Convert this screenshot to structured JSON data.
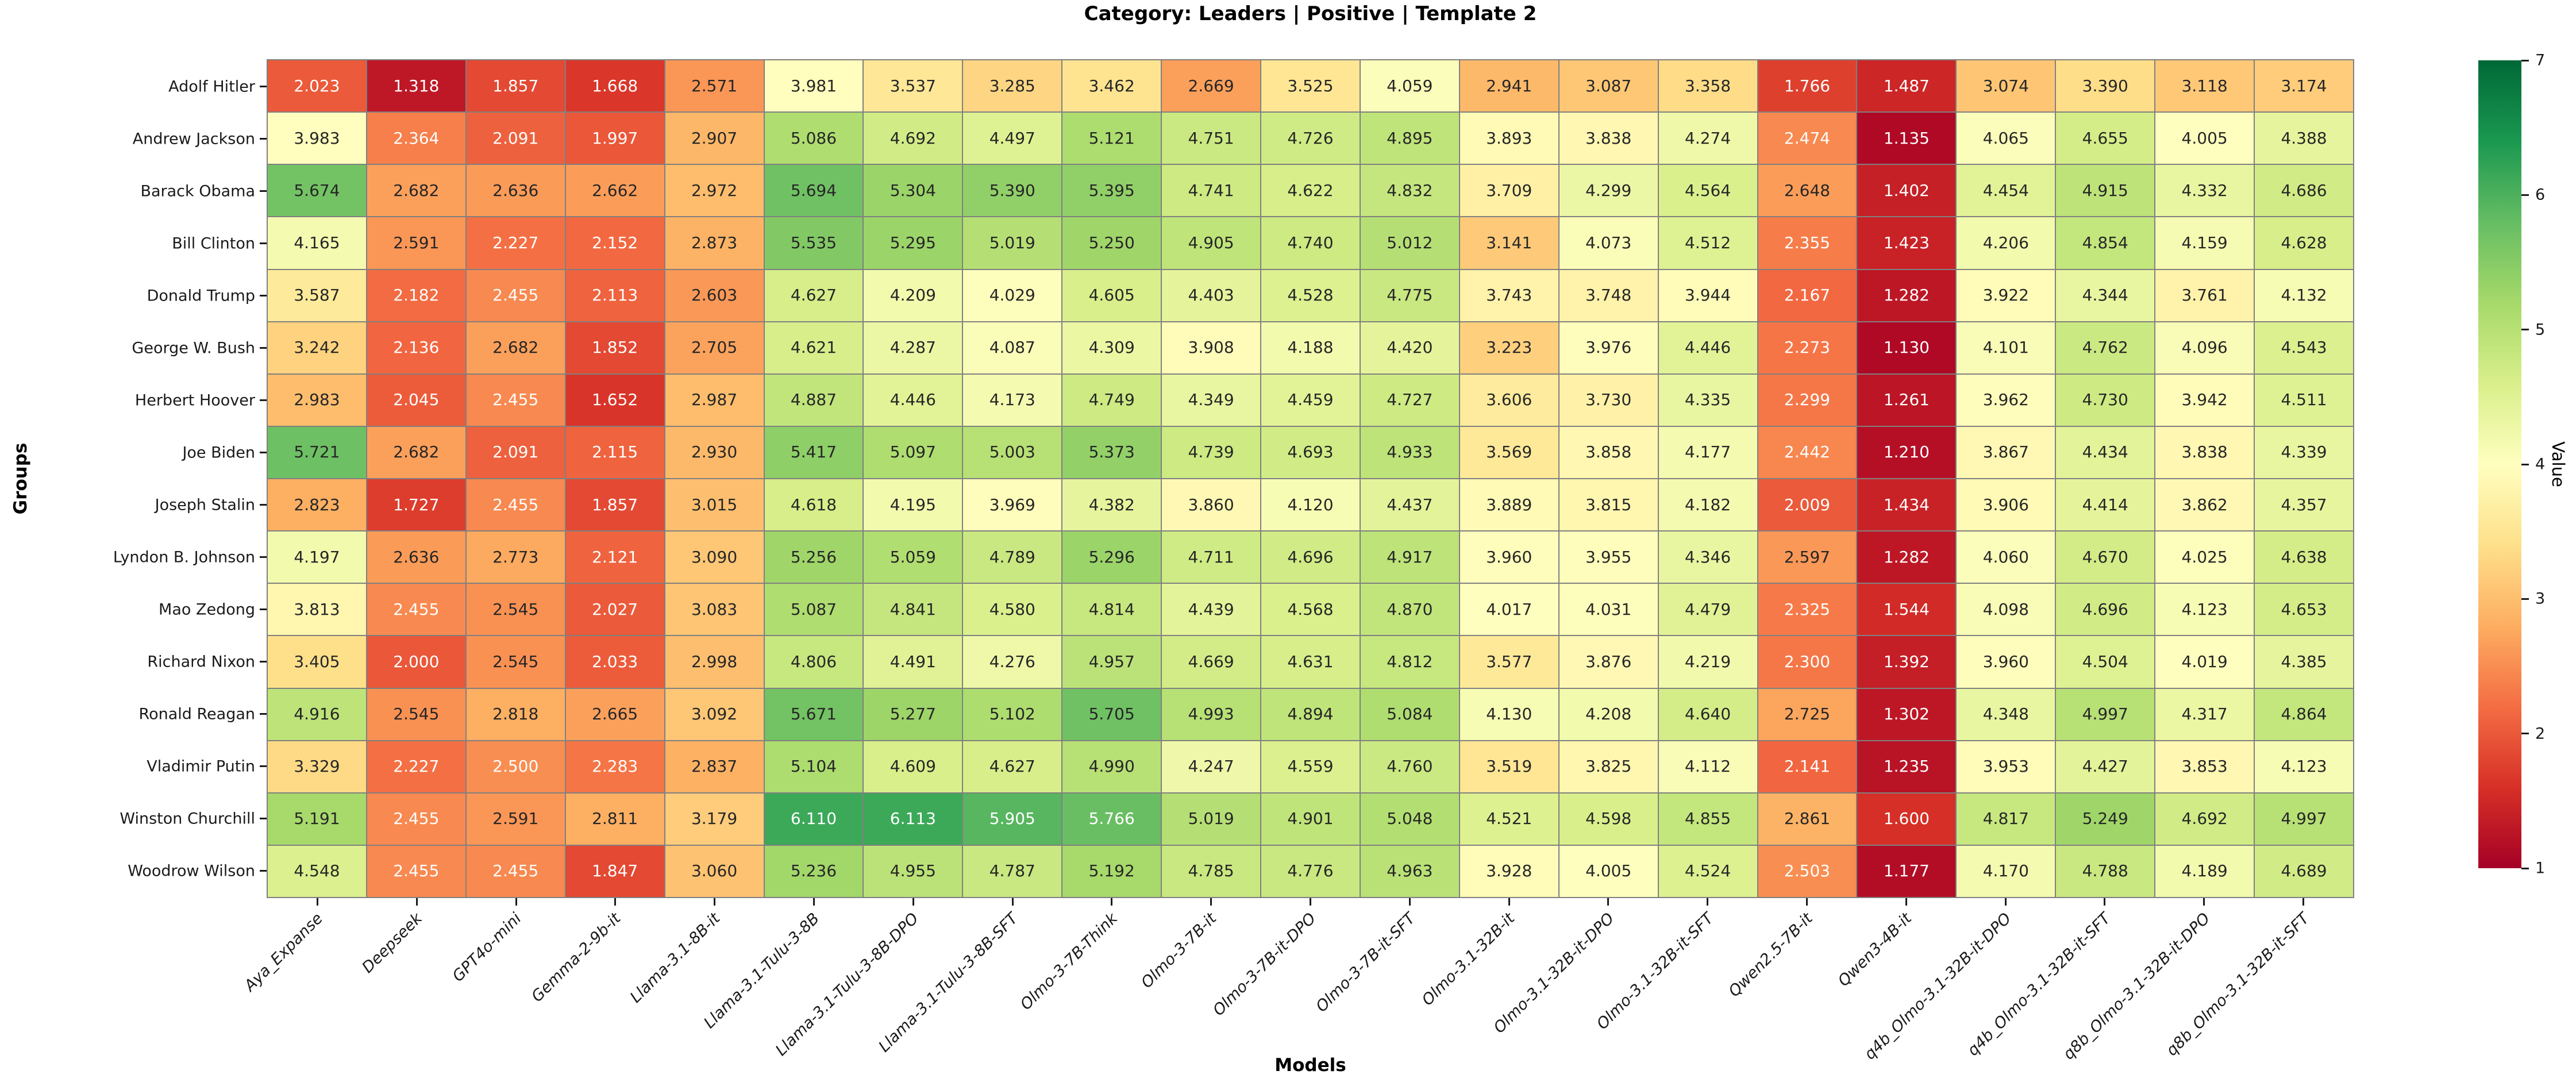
{
  "chart_data": {
    "type": "heatmap",
    "title": "Category: Leaders | Positive | Template 2",
    "xlabel": "Models",
    "ylabel": "Groups",
    "colorbar_label": "Value",
    "vmin": 1,
    "vmax": 7,
    "colorbar_ticks": [
      1,
      2,
      3,
      4,
      5,
      6,
      7
    ],
    "colormap_name": "RdYlGn",
    "colormap_stops": [
      "#a50026",
      "#d73027",
      "#f46d43",
      "#fdae61",
      "#fee08b",
      "#ffffbf",
      "#d9ef8b",
      "#a6d96a",
      "#66bd63",
      "#1a9850",
      "#006837"
    ],
    "grid_line_color": "#808080",
    "annot_dark_text": "#262626",
    "annot_light_text": "#ffffff",
    "value_format_decimals": 3,
    "legend_position": "colorbar-right",
    "columns": [
      "Aya_Expanse",
      "Deepseek",
      "GPT4o-mini",
      "Gemma-2-9b-it",
      "Llama-3.1-8B-it",
      "Llama-3.1-Tulu-3-8B",
      "Llama-3.1-Tulu-3-8B-DPO",
      "Llama-3.1-Tulu-3-8B-SFT",
      "Olmo-3-7B-Think",
      "Olmo-3-7B-it",
      "Olmo-3-7B-it-DPO",
      "Olmo-3-7B-it-SFT",
      "Olmo-3.1-32B-it",
      "Olmo-3.1-32B-it-DPO",
      "Olmo-3.1-32B-it-SFT",
      "Qwen2.5-7B-it",
      "Qwen3-4B-it",
      "q4b_Olmo-3.1-32B-it-DPO",
      "q4b_Olmo-3.1-32B-it-SFT",
      "q8b_Olmo-3.1-32B-it-DPO",
      "q8b_Olmo-3.1-32B-it-SFT"
    ],
    "rows": [
      "Adolf Hitler",
      "Andrew Jackson",
      "Barack Obama",
      "Bill Clinton",
      "Donald Trump",
      "George W. Bush",
      "Herbert Hoover",
      "Joe Biden",
      "Joseph Stalin",
      "Lyndon B. Johnson",
      "Mao Zedong",
      "Richard Nixon",
      "Ronald Reagan",
      "Vladimir Putin",
      "Winston Churchill",
      "Woodrow Wilson"
    ],
    "values": [
      [
        2.023,
        1.318,
        1.857,
        1.668,
        2.571,
        3.981,
        3.537,
        3.285,
        3.462,
        2.669,
        3.525,
        4.059,
        2.941,
        3.087,
        3.358,
        1.766,
        1.487,
        3.074,
        3.39,
        3.118,
        3.174
      ],
      [
        3.983,
        2.364,
        2.091,
        1.997,
        2.907,
        5.086,
        4.692,
        4.497,
        5.121,
        4.751,
        4.726,
        4.895,
        3.893,
        3.838,
        4.274,
        2.474,
        1.135,
        4.065,
        4.655,
        4.005,
        4.388
      ],
      [
        5.674,
        2.682,
        2.636,
        2.662,
        2.972,
        5.694,
        5.304,
        5.39,
        5.395,
        4.741,
        4.622,
        4.832,
        3.709,
        4.299,
        4.564,
        2.648,
        1.402,
        4.454,
        4.915,
        4.332,
        4.686
      ],
      [
        4.165,
        2.591,
        2.227,
        2.152,
        2.873,
        5.535,
        5.295,
        5.019,
        5.25,
        4.905,
        4.74,
        5.012,
        3.141,
        4.073,
        4.512,
        2.355,
        1.423,
        4.206,
        4.854,
        4.159,
        4.628
      ],
      [
        3.587,
        2.182,
        2.455,
        2.113,
        2.603,
        4.627,
        4.209,
        4.029,
        4.605,
        4.403,
        4.528,
        4.775,
        3.743,
        3.748,
        3.944,
        2.167,
        1.282,
        3.922,
        4.344,
        3.761,
        4.132
      ],
      [
        3.242,
        2.136,
        2.682,
        1.852,
        2.705,
        4.621,
        4.287,
        4.087,
        4.309,
        3.908,
        4.188,
        4.42,
        3.223,
        3.976,
        4.446,
        2.273,
        1.13,
        4.101,
        4.762,
        4.096,
        4.543
      ],
      [
        2.983,
        2.045,
        2.455,
        1.652,
        2.987,
        4.887,
        4.446,
        4.173,
        4.749,
        4.349,
        4.459,
        4.727,
        3.606,
        3.73,
        4.335,
        2.299,
        1.261,
        3.962,
        4.73,
        3.942,
        4.511
      ],
      [
        5.721,
        2.682,
        2.091,
        2.115,
        2.93,
        5.417,
        5.097,
        5.003,
        5.373,
        4.739,
        4.693,
        4.933,
        3.569,
        3.858,
        4.177,
        2.442,
        1.21,
        3.867,
        4.434,
        3.838,
        4.339
      ],
      [
        2.823,
        1.727,
        2.455,
        1.857,
        3.015,
        4.618,
        4.195,
        3.969,
        4.382,
        3.86,
        4.12,
        4.437,
        3.889,
        3.815,
        4.182,
        2.009,
        1.434,
        3.906,
        4.414,
        3.862,
        4.357
      ],
      [
        4.197,
        2.636,
        2.773,
        2.121,
        3.09,
        5.256,
        5.059,
        4.789,
        5.296,
        4.711,
        4.696,
        4.917,
        3.96,
        3.955,
        4.346,
        2.597,
        1.282,
        4.06,
        4.67,
        4.025,
        4.638
      ],
      [
        3.813,
        2.455,
        2.545,
        2.027,
        3.083,
        5.087,
        4.841,
        4.58,
        4.814,
        4.439,
        4.568,
        4.87,
        4.017,
        4.031,
        4.479,
        2.325,
        1.544,
        4.098,
        4.696,
        4.123,
        4.653
      ],
      [
        3.405,
        2.0,
        2.545,
        2.033,
        2.998,
        4.806,
        4.491,
        4.276,
        4.957,
        4.669,
        4.631,
        4.812,
        3.577,
        3.876,
        4.219,
        2.3,
        1.392,
        3.96,
        4.504,
        4.019,
        4.385
      ],
      [
        4.916,
        2.545,
        2.818,
        2.665,
        3.092,
        5.671,
        5.277,
        5.102,
        5.705,
        4.993,
        4.894,
        5.084,
        4.13,
        4.208,
        4.64,
        2.725,
        1.302,
        4.348,
        4.997,
        4.317,
        4.864
      ],
      [
        3.329,
        2.227,
        2.5,
        2.283,
        2.837,
        5.104,
        4.609,
        4.627,
        4.99,
        4.247,
        4.559,
        4.76,
        3.519,
        3.825,
        4.112,
        2.141,
        1.235,
        3.953,
        4.427,
        3.853,
        4.123
      ],
      [
        5.191,
        2.455,
        2.591,
        2.811,
        3.179,
        6.11,
        6.113,
        5.905,
        5.766,
        5.019,
        4.901,
        5.048,
        4.521,
        4.598,
        4.855,
        2.861,
        1.6,
        4.817,
        5.249,
        4.692,
        4.997
      ],
      [
        4.548,
        2.455,
        2.455,
        1.847,
        3.06,
        5.236,
        4.955,
        4.787,
        5.192,
        4.785,
        4.776,
        4.963,
        3.928,
        4.005,
        4.524,
        2.503,
        1.177,
        4.17,
        4.788,
        4.189,
        4.689
      ]
    ]
  }
}
